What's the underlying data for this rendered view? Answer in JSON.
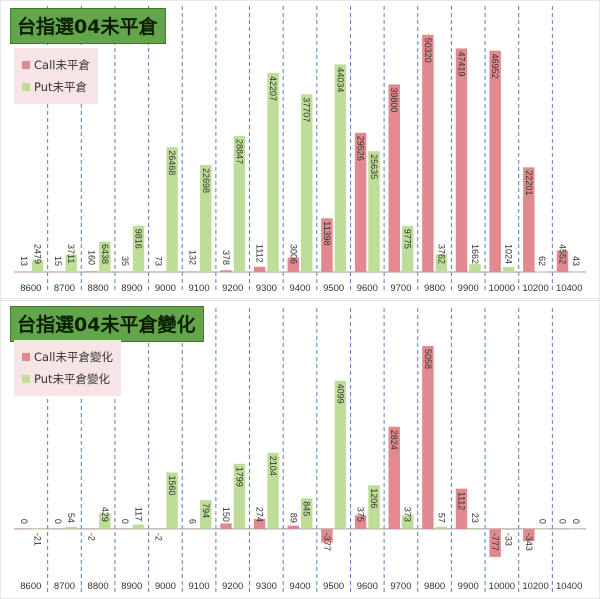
{
  "chart_data": [
    {
      "type": "bar",
      "title": "台指選04未平倉",
      "categories": [
        "8600",
        "8700",
        "8800",
        "8900",
        "9000",
        "9100",
        "9200",
        "9300",
        "9400",
        "9500",
        "9600",
        "9700",
        "9800",
        "9900",
        "10000",
        "10200",
        "10400"
      ],
      "series": [
        {
          "name": "Call未平倉",
          "color": "#e0898e",
          "values": [
            13,
            15,
            160,
            35,
            73,
            132,
            378,
            1112,
            3006,
            11398,
            29526,
            39800,
            50320,
            47419,
            46952,
            22201,
            4552
          ]
        },
        {
          "name": "Put未平倉",
          "color": "#bedd98",
          "values": [
            2479,
            3711,
            6438,
            9816,
            26468,
            22698,
            28847,
            42207,
            37707,
            44034,
            25635,
            9775,
            3762,
            1662,
            1024,
            62,
            43
          ]
        }
      ],
      "ylim": [
        0,
        56000
      ],
      "legend": "top-left",
      "grid": "vertical dashed"
    },
    {
      "type": "bar",
      "title": "台指選04未平倉變化",
      "categories": [
        "8600",
        "8700",
        "8800",
        "8900",
        "9000",
        "9100",
        "9200",
        "9300",
        "9400",
        "9500",
        "9600",
        "9700",
        "9800",
        "9900",
        "10000",
        "10200",
        "10400"
      ],
      "series": [
        {
          "name": "Call未平倉變化",
          "color": "#e0898e",
          "values": [
            0,
            0,
            -2,
            0,
            -2,
            6,
            150,
            274,
            89,
            -377,
            375,
            2824,
            5058,
            1112,
            -777,
            -343,
            0
          ]
        },
        {
          "name": "Put未平倉變化",
          "color": "#bedd98",
          "values": [
            -21,
            54,
            429,
            117,
            1560,
            794,
            1799,
            2104,
            845,
            4099,
            1206,
            373,
            57,
            23,
            -33,
            0,
            0
          ]
        }
      ],
      "ylim": [
        -1000,
        5500
      ],
      "legend": "top-left",
      "grid": "vertical dashed"
    }
  ]
}
